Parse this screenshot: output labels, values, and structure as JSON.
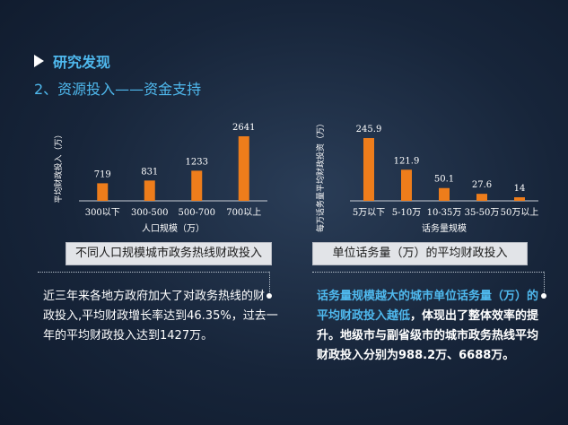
{
  "header": {
    "title": "研究发现",
    "subtitle": "2、资源投入——资金支持"
  },
  "colors": {
    "bar": "#ee7d1b",
    "accent": "#4fb9ee"
  },
  "chart_data": [
    {
      "type": "bar",
      "categories": [
        "300以下",
        "300-500",
        "500-700",
        "700以上"
      ],
      "values": [
        719,
        831,
        1233,
        2641
      ],
      "data_labels": [
        "719",
        "831",
        "1233",
        "2641"
      ],
      "xlabel": "人口规模（万）",
      "ylabel": "平均财政投入（万）",
      "ylim": [
        0,
        2641
      ],
      "caption": "不同人口规模城市政务热线财政投入"
    },
    {
      "type": "bar",
      "categories": [
        "5万以下",
        "5-10万",
        "10-35万",
        "35-50万",
        "50万以上"
      ],
      "values": [
        245.9,
        121.9,
        50.1,
        27.6,
        14
      ],
      "data_labels": [
        "245.9",
        "121.9",
        "50.1",
        "27.6",
        "14"
      ],
      "xlabel": "话务量规模",
      "ylabel": "每万话务量平均财政投资（万）",
      "ylim": [
        0,
        245.9
      ],
      "caption": "单位话务量（万）的平均财政投入"
    }
  ],
  "left_text": {
    "line1": "近三年来各地方政府加大了对政务热线的财",
    "line2": "政投入,平均财政增长率达到46.35%，过去一",
    "line3": "年的平均财政投入达到1427万。"
  },
  "right_text": {
    "hl1": "话务量规模越大的城市单位话务量（万）的",
    "hl2": "平均财政投入越低",
    "rest2": "，体现出了整体效率的提",
    "line3": "升。地级市与副省级市的城市政务热线平均",
    "line4": "财政投入分别为988.2万、6688万。"
  }
}
